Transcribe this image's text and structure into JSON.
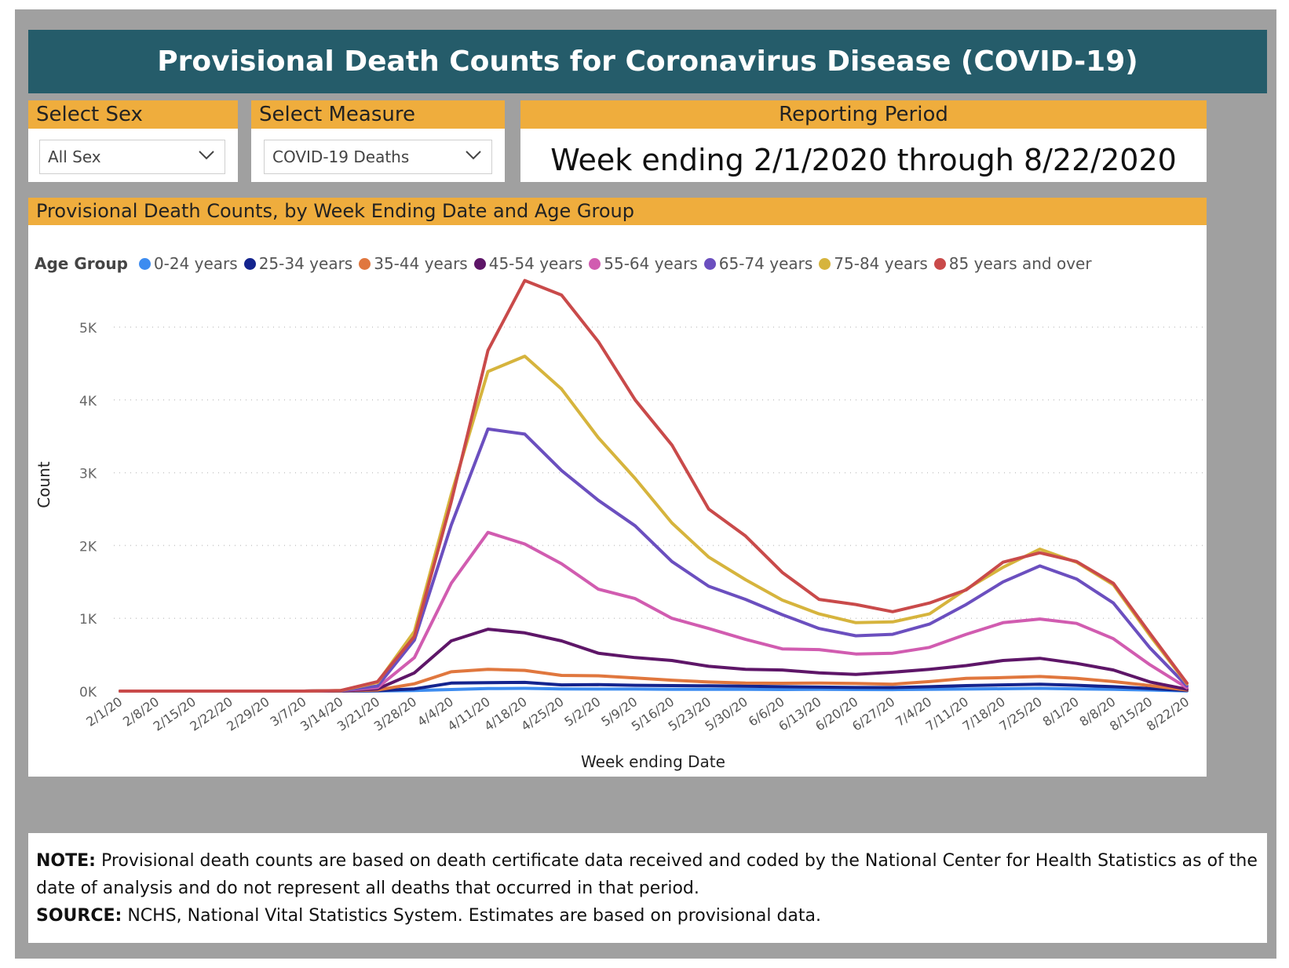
{
  "header": {
    "title": "Provisional Death Counts for Coronavirus Disease (COVID-19)"
  },
  "filters": {
    "sex": {
      "label": "Select Sex",
      "value": "All Sex"
    },
    "measure": {
      "label": "Select Measure",
      "value": "COVID-19 Deaths"
    },
    "period": {
      "label": "Reporting Period",
      "value": "Week ending 2/1/2020 through 8/22/2020"
    }
  },
  "chart_panel": {
    "title": "Provisional Death Counts, by Week Ending Date and Age Group"
  },
  "legend": {
    "title": "Age Group"
  },
  "note": {
    "note_label": "NOTE:",
    "note_text": "Provisional death counts are based on death certificate data received and coded by the National Center for Health Statistics as of the date of analysis and do not represent all deaths that occurred in that period.",
    "source_label": "SOURCE:",
    "source_text": "NCHS, National Vital Statistics System. Estimates are based on provisional data."
  },
  "chart_data": {
    "type": "line",
    "title": "Provisional Death Counts, by Week Ending Date and Age Group",
    "xlabel": "Week ending Date",
    "ylabel": "Count",
    "ylim": [
      0,
      5700
    ],
    "yticks": [
      0,
      1000,
      2000,
      3000,
      4000,
      5000
    ],
    "ytick_labels": [
      "0K",
      "1K",
      "2K",
      "3K",
      "4K",
      "5K"
    ],
    "grid": true,
    "legend_position": "top-left",
    "x": [
      "2/1/20",
      "2/8/20",
      "2/15/20",
      "2/22/20",
      "2/29/20",
      "3/7/20",
      "3/14/20",
      "3/21/20",
      "3/28/20",
      "4/4/20",
      "4/11/20",
      "4/18/20",
      "4/25/20",
      "5/2/20",
      "5/9/20",
      "5/16/20",
      "5/23/20",
      "5/30/20",
      "6/6/20",
      "6/13/20",
      "6/20/20",
      "6/27/20",
      "7/4/20",
      "7/11/20",
      "7/18/20",
      "7/25/20",
      "8/1/20",
      "8/8/20",
      "8/15/20",
      "8/22/20"
    ],
    "series": [
      {
        "name": "0-24 years",
        "color": "#3d8cf0",
        "values": [
          0,
          0,
          0,
          0,
          0,
          0,
          0,
          2,
          8,
          22,
          35,
          38,
          30,
          28,
          28,
          25,
          25,
          24,
          22,
          24,
          22,
          20,
          24,
          28,
          32,
          38,
          30,
          25,
          15,
          3
        ]
      },
      {
        "name": "25-34 years",
        "color": "#14248e",
        "values": [
          0,
          0,
          0,
          0,
          0,
          0,
          1,
          5,
          30,
          110,
          115,
          120,
          85,
          88,
          80,
          75,
          72,
          68,
          60,
          55,
          50,
          48,
          60,
          75,
          85,
          95,
          80,
          60,
          35,
          8
        ]
      },
      {
        "name": "35-44 years",
        "color": "#e0773e",
        "values": [
          0,
          0,
          0,
          0,
          0,
          0,
          2,
          15,
          100,
          265,
          300,
          285,
          215,
          210,
          180,
          150,
          125,
          110,
          108,
          110,
          105,
          95,
          130,
          175,
          185,
          200,
          175,
          130,
          75,
          15
        ]
      },
      {
        "name": "45-54 years",
        "color": "#5e1668",
        "values": [
          0,
          0,
          0,
          0,
          0,
          0,
          4,
          30,
          250,
          690,
          850,
          800,
          690,
          520,
          460,
          420,
          340,
          300,
          290,
          250,
          230,
          260,
          300,
          350,
          420,
          450,
          380,
          290,
          125,
          25
        ]
      },
      {
        "name": "55-64 years",
        "color": "#d15cb0",
        "values": [
          0,
          0,
          0,
          0,
          0,
          0,
          6,
          50,
          460,
          1480,
          2180,
          2020,
          1750,
          1400,
          1270,
          1000,
          860,
          710,
          580,
          570,
          510,
          520,
          600,
          780,
          940,
          990,
          930,
          720,
          360,
          45
        ]
      },
      {
        "name": "65-74 years",
        "color": "#6b4fbf",
        "values": [
          0,
          0,
          0,
          0,
          0,
          0,
          7,
          70,
          700,
          2280,
          3600,
          3530,
          3030,
          2620,
          2270,
          1780,
          1440,
          1260,
          1050,
          860,
          760,
          780,
          920,
          1190,
          1500,
          1720,
          1540,
          1210,
          590,
          70
        ]
      },
      {
        "name": "75-84 years",
        "color": "#d6b43d",
        "values": [
          0,
          0,
          0,
          0,
          0,
          0,
          8,
          120,
          820,
          2700,
          4390,
          4600,
          4150,
          3480,
          2920,
          2310,
          1840,
          1530,
          1250,
          1060,
          940,
          950,
          1060,
          1400,
          1700,
          1950,
          1770,
          1460,
          760,
          100
        ]
      },
      {
        "name": "85 years and over",
        "color": "#c94a4a",
        "values": [
          0,
          0,
          0,
          0,
          0,
          0,
          9,
          130,
          750,
          2600,
          4680,
          5640,
          5440,
          4800,
          4000,
          3380,
          2500,
          2130,
          1630,
          1260,
          1190,
          1090,
          1210,
          1390,
          1770,
          1900,
          1780,
          1480,
          790,
          110
        ]
      }
    ]
  }
}
